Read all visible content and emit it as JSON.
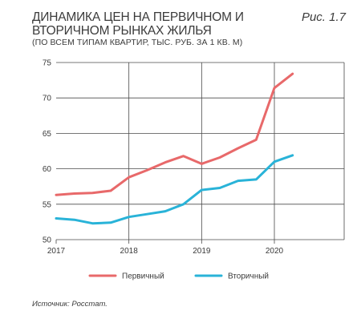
{
  "title": "ДИНАМИКА ЦЕН НА ПЕРВИЧНОМ И ВТОРИЧНОМ РЫНКАХ ЖИЛЬЯ",
  "figure_label": "Рис. 1.7",
  "subtitle": "(ПО ВСЕМ ТИПАМ КВАРТИР, ТЫС. РУБ. ЗА 1 КВ. М)",
  "source": "Источник: Росстат.",
  "chart_data": {
    "type": "line",
    "title": "ДИНАМИКА ЦЕН НА ПЕРВИЧНОМ И ВТОРИЧНОМ РЫНКАХ ЖИЛЬЯ",
    "subtitle": "(ПО ВСЕМ ТИПАМ КВАРТИР, ТЫС. РУБ. ЗА 1 КВ. М)",
    "xlabel": "",
    "ylabel": "",
    "x": [
      "2017Q1",
      "2017Q2",
      "2017Q3",
      "2017Q4",
      "2018Q1",
      "2018Q2",
      "2018Q3",
      "2018Q4",
      "2019Q1",
      "2019Q2",
      "2019Q3",
      "2019Q4",
      "2020Q1",
      "2020Q2"
    ],
    "x_ticks": [
      "2017",
      "2018",
      "2019",
      "2020"
    ],
    "y_ticks": [
      50,
      55,
      60,
      65,
      70,
      75
    ],
    "ylim": [
      50,
      75
    ],
    "grid": {
      "horizontal": true,
      "vertical": true
    },
    "legend_position": "bottom",
    "series": [
      {
        "name": "Первичный",
        "color": "#e8696a",
        "values": [
          56.3,
          56.5,
          56.6,
          56.9,
          58.8,
          59.8,
          60.9,
          61.8,
          60.7,
          61.6,
          62.9,
          64.1,
          71.4,
          73.4
        ]
      },
      {
        "name": "Вторичный",
        "color": "#29b3d8",
        "values": [
          53.0,
          52.8,
          52.3,
          52.4,
          53.2,
          53.6,
          54.0,
          55.0,
          57.0,
          57.3,
          58.3,
          58.5,
          61.0,
          61.9
        ]
      }
    ]
  }
}
